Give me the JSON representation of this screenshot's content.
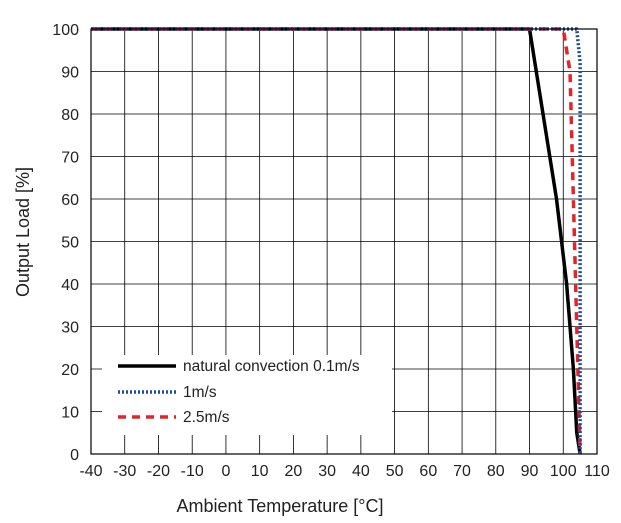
{
  "chart_data": {
    "type": "line",
    "title": "",
    "xlabel": "Ambient Temperature [°C]",
    "ylabel": "Output Load [%]",
    "xlim": [
      -40,
      110
    ],
    "ylim": [
      0,
      100
    ],
    "x_ticks": [
      -40,
      -30,
      -20,
      -10,
      0,
      10,
      20,
      30,
      40,
      50,
      60,
      70,
      80,
      90,
      100,
      110
    ],
    "y_ticks": [
      0,
      10,
      20,
      30,
      40,
      50,
      60,
      70,
      80,
      90,
      100
    ],
    "grid": true,
    "legend_position": "bottom-left",
    "series": [
      {
        "name": "natural convection 0.1m/s",
        "color": "#000000",
        "style": "solid",
        "x": [
          -40,
          90,
          94,
          98,
          101,
          103,
          104,
          105
        ],
        "y": [
          100,
          100,
          80,
          60,
          40,
          20,
          5,
          0
        ]
      },
      {
        "name": "1m/s",
        "color": "#1f4e9c",
        "style": "dotted",
        "x": [
          -40,
          104,
          105,
          105
        ],
        "y": [
          100,
          100,
          92,
          0
        ]
      },
      {
        "name": "2.5m/s",
        "color": "#e0252b",
        "style": "dashed",
        "x": [
          -40,
          100,
          102,
          104,
          105
        ],
        "y": [
          100,
          100,
          90,
          30,
          0
        ]
      }
    ]
  }
}
